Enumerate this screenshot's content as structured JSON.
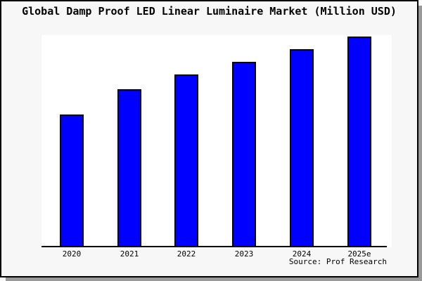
{
  "title": "Global Damp Proof LED Linear Luminaire Market (Million USD)",
  "source_note": "Source: Prof Research",
  "colors": {
    "bar_fill": "#0000ff",
    "bar_border": "#000000",
    "axis_line": "#000000",
    "figure_bg": "#f7f7f7",
    "plot_bg": "#ffffff",
    "figure_border": "#000000",
    "shadow": "#999999",
    "text": "#000000"
  },
  "chart_data": {
    "type": "bar",
    "title": "Global Damp Proof LED Linear Luminaire Market (Million USD)",
    "categories": [
      "2020",
      "2021",
      "2022",
      "2023",
      "2024",
      "2025e"
    ],
    "values": [
      63,
      75,
      82,
      88,
      94,
      100
    ],
    "xlabel": "",
    "ylabel": "",
    "ylim": [
      0,
      100
    ],
    "value_scale": "relative height, tallest bar (2025e) = 100; no numeric y-axis shown",
    "grid": false,
    "legend": false,
    "y_axis_visible": false,
    "x_axis_visible": true,
    "bar_count": 6
  }
}
